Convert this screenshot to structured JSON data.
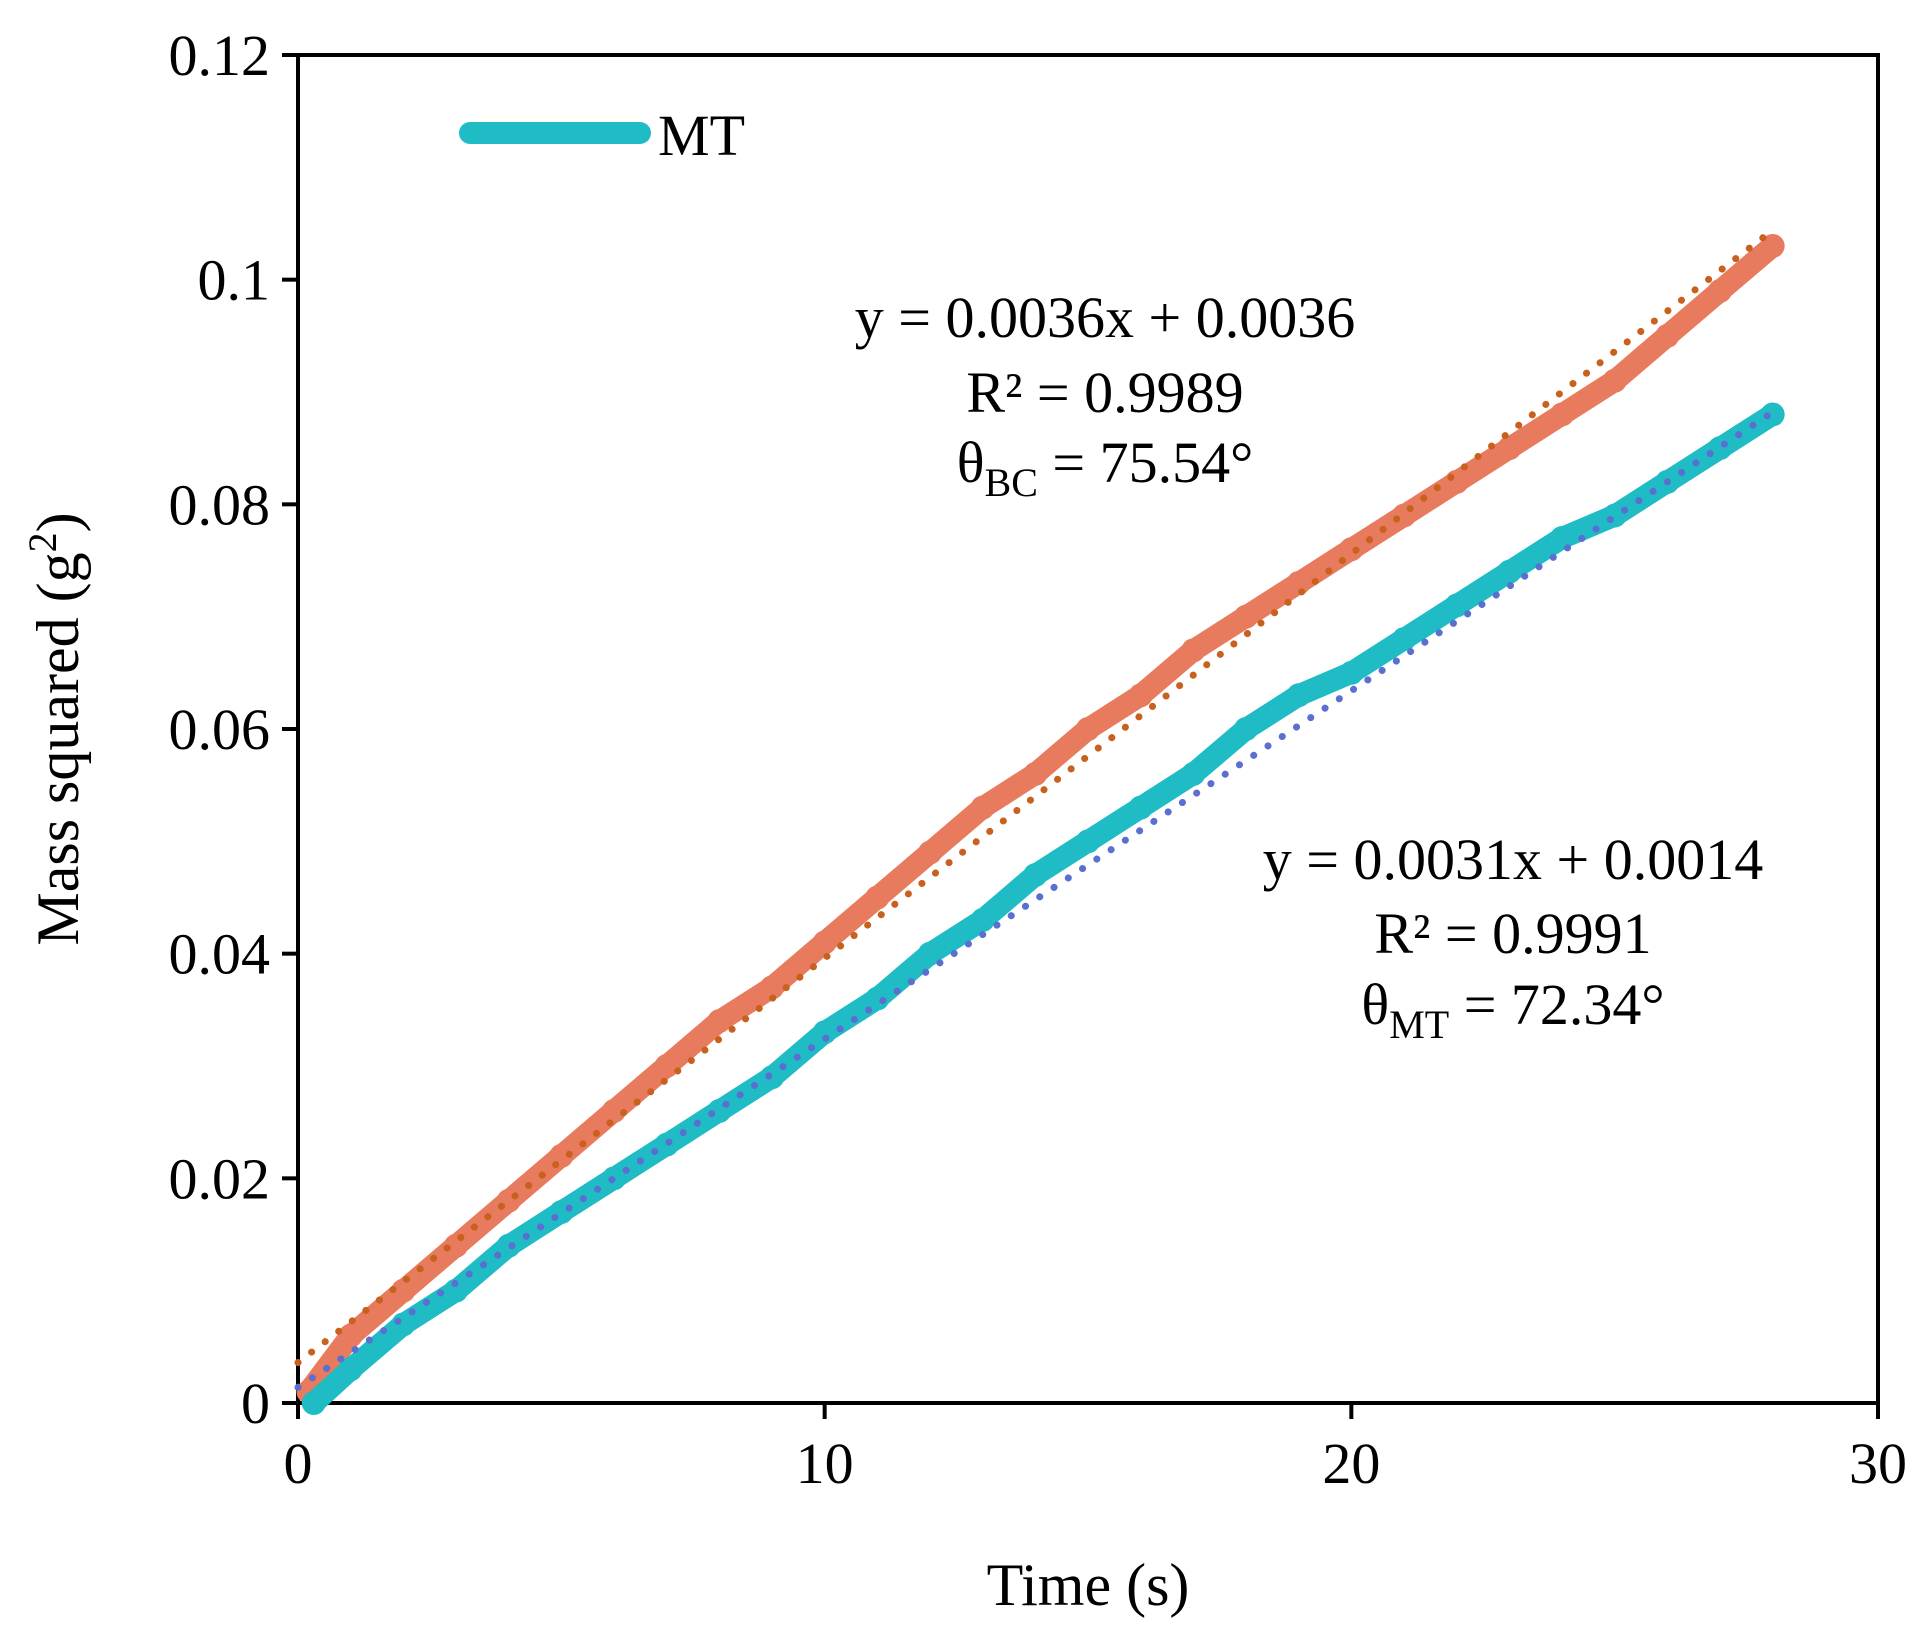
{
  "chart_data": {
    "type": "line",
    "title": "",
    "xlabel": "Time (s)",
    "ylabel_main": "Mass squared (g",
    "ylabel_sup": "2",
    "ylabel_close": ")",
    "xlim": [
      0,
      30
    ],
    "ylim": [
      0,
      0.12
    ],
    "x_ticks": [
      0,
      10,
      20,
      30
    ],
    "x_tick_labels": [
      "0",
      "10",
      "20",
      "30"
    ],
    "y_ticks": [
      0,
      0.02,
      0.04,
      0.06,
      0.08,
      0.1,
      0.12
    ],
    "y_tick_labels": [
      "0",
      "0.02",
      "0.04",
      "0.06",
      "0.08",
      "0.1",
      "0.12"
    ],
    "grid": false,
    "legend": {
      "position": "top-left",
      "entries": [
        {
          "label": "MT",
          "color": "#1fbcc6"
        }
      ]
    },
    "series": [
      {
        "name": "BC",
        "color": "#e87a5d",
        "trend_color": "#c8601e",
        "x": [
          0.2,
          1,
          2,
          3,
          4,
          5,
          6,
          7,
          8,
          9,
          10,
          11,
          12,
          13,
          14,
          15,
          16,
          17,
          18,
          19,
          20,
          21,
          22,
          23,
          24,
          25,
          26,
          27,
          28
        ],
        "y": [
          0.001,
          0.006,
          0.01,
          0.014,
          0.018,
          0.022,
          0.026,
          0.03,
          0.034,
          0.037,
          0.041,
          0.045,
          0.049,
          0.053,
          0.056,
          0.06,
          0.063,
          0.067,
          0.07,
          0.073,
          0.076,
          0.079,
          0.082,
          0.085,
          0.088,
          0.091,
          0.095,
          0.099,
          0.103
        ],
        "trend": {
          "slope": 0.0036,
          "intercept": 0.0036,
          "x_range": [
            0,
            28
          ]
        }
      },
      {
        "name": "MT",
        "color": "#1fbcc6",
        "trend_color": "#5a6fd0",
        "x": [
          0.3,
          1,
          2,
          3,
          4,
          5,
          6,
          7,
          8,
          9,
          10,
          11,
          12,
          13,
          14,
          15,
          16,
          17,
          18,
          19,
          20,
          21,
          22,
          23,
          24,
          25,
          26,
          27,
          28
        ],
        "y": [
          0.0,
          0.003,
          0.007,
          0.01,
          0.014,
          0.017,
          0.02,
          0.023,
          0.026,
          0.029,
          0.033,
          0.036,
          0.04,
          0.043,
          0.047,
          0.05,
          0.053,
          0.056,
          0.06,
          0.063,
          0.065,
          0.068,
          0.071,
          0.074,
          0.077,
          0.079,
          0.082,
          0.085,
          0.088
        ],
        "trend": {
          "slope": 0.0031,
          "intercept": 0.0014,
          "x_range": [
            0,
            28
          ]
        }
      }
    ],
    "annotations": [
      {
        "id": "bc",
        "equation": "y = 0.0036x + 0.0036",
        "r2": "R² = 0.9989",
        "theta_symbol": "θ",
        "theta_sub": "BC",
        "theta_value": " = 75.54°"
      },
      {
        "id": "mt",
        "equation": "y = 0.0031x + 0.0014",
        "r2": "R² = 0.9991",
        "theta_symbol": "θ",
        "theta_sub": "MT",
        "theta_value": " = 72.34°"
      }
    ]
  }
}
